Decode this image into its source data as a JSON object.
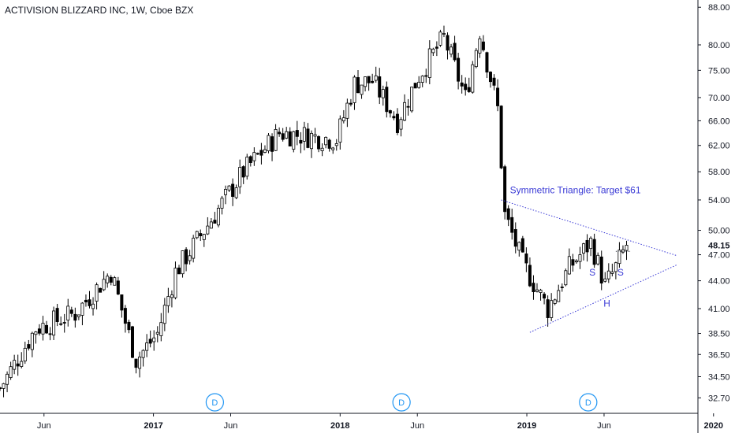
{
  "title": "ACTIVISION BLIZZARD INC, 1W, Cboe BZX",
  "chart_data": {
    "type": "candlestick",
    "title": "ACTIVISION BLIZZARD INC, 1W, Cboe BZX",
    "y_ticks": [
      32.7,
      34.5,
      36.5,
      38.5,
      41.0,
      44.0,
      47.0,
      50.0,
      54.0,
      58.0,
      62.0,
      66.0,
      70.0,
      75.0,
      80.0,
      88.0
    ],
    "y_tick_labels": [
      "32.70",
      "34.50",
      "36.50",
      "38.50",
      "41.00",
      "44.00",
      "47.00",
      "50.00",
      "54.00",
      "58.00",
      "62.00",
      "66.00",
      "70.00",
      "75.00",
      "80.00",
      "88.00"
    ],
    "y_scale": "log",
    "last_price": 48.15,
    "last_price_label": "48.15",
    "x_tick_labels": [
      {
        "label": "Jun",
        "date": "2016-06-01",
        "bold": false
      },
      {
        "label": "2017",
        "date": "2017-01-01",
        "bold": true
      },
      {
        "label": "Jun",
        "date": "2017-06-01",
        "bold": false
      },
      {
        "label": "2018",
        "date": "2018-01-01",
        "bold": true
      },
      {
        "label": "Jun",
        "date": "2018-06-01",
        "bold": false
      },
      {
        "label": "2019",
        "date": "2019-01-01",
        "bold": true
      },
      {
        "label": "Jun",
        "date": "2019-06-01",
        "bold": false
      },
      {
        "label": "2020",
        "date": "2020-01-01",
        "bold": true
      },
      {
        "label": "Jun",
        "date": "2020-06-01",
        "bold": false
      }
    ],
    "dividends": [
      {
        "label": "D",
        "date": "2017-05-01"
      },
      {
        "label": "D",
        "date": "2018-05-01"
      },
      {
        "label": "D",
        "date": "2019-05-01"
      }
    ],
    "series_key_points": [
      {
        "date": "2016-03-07",
        "close": 33.5
      },
      {
        "date": "2016-05-16",
        "close": 39.0
      },
      {
        "date": "2016-08-01",
        "close": 40.5
      },
      {
        "date": "2016-10-10",
        "close": 45.0
      },
      {
        "date": "2016-11-28",
        "close": 36.0
      },
      {
        "date": "2017-01-09",
        "close": 38.5
      },
      {
        "date": "2017-02-13",
        "close": 45.0
      },
      {
        "date": "2017-04-10",
        "close": 50.0
      },
      {
        "date": "2017-06-26",
        "close": 58.0
      },
      {
        "date": "2017-09-04",
        "close": 64.0
      },
      {
        "date": "2017-12-25",
        "close": 63.0
      },
      {
        "date": "2018-01-29",
        "close": 72.5
      },
      {
        "date": "2018-03-05",
        "close": 73.0
      },
      {
        "date": "2018-04-23",
        "close": 66.0
      },
      {
        "date": "2018-06-04",
        "close": 74.0
      },
      {
        "date": "2018-07-23",
        "close": 81.5
      },
      {
        "date": "2018-09-03",
        "close": 70.0
      },
      {
        "date": "2018-10-01",
        "close": 83.0
      },
      {
        "date": "2018-11-05",
        "close": 68.0
      },
      {
        "date": "2018-11-19",
        "close": 52.0
      },
      {
        "date": "2018-12-24",
        "close": 46.0
      },
      {
        "date": "2019-02-11",
        "close": 41.0
      },
      {
        "date": "2019-03-25",
        "close": 45.5
      },
      {
        "date": "2019-05-06",
        "close": 48.5
      },
      {
        "date": "2019-06-03",
        "close": 43.5
      },
      {
        "date": "2019-06-24",
        "close": 45.5
      },
      {
        "date": "2019-07-15",
        "close": 48.15
      }
    ],
    "annotations": {
      "triangle_label": "Symmetric Triangle: Target $61",
      "s_left": "S",
      "s_right": "S",
      "h": "H"
    },
    "colors": {
      "candle_up": "#ffffff",
      "candle_down": "#000000",
      "candle_border": "#000000",
      "annotation": "#3b3bd6",
      "dividend": "#2196f3",
      "axis": "#131722",
      "background": "#ffffff"
    }
  }
}
